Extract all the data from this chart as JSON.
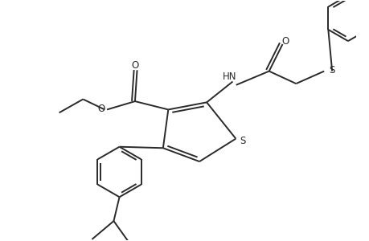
{
  "background_color": "#ffffff",
  "line_color": "#2a2a2a",
  "line_width": 1.4,
  "figsize": [
    4.6,
    3.0
  ],
  "dpi": 100,
  "xlim": [
    -2.8,
    3.2
  ],
  "ylim": [
    -2.2,
    2.0
  ]
}
